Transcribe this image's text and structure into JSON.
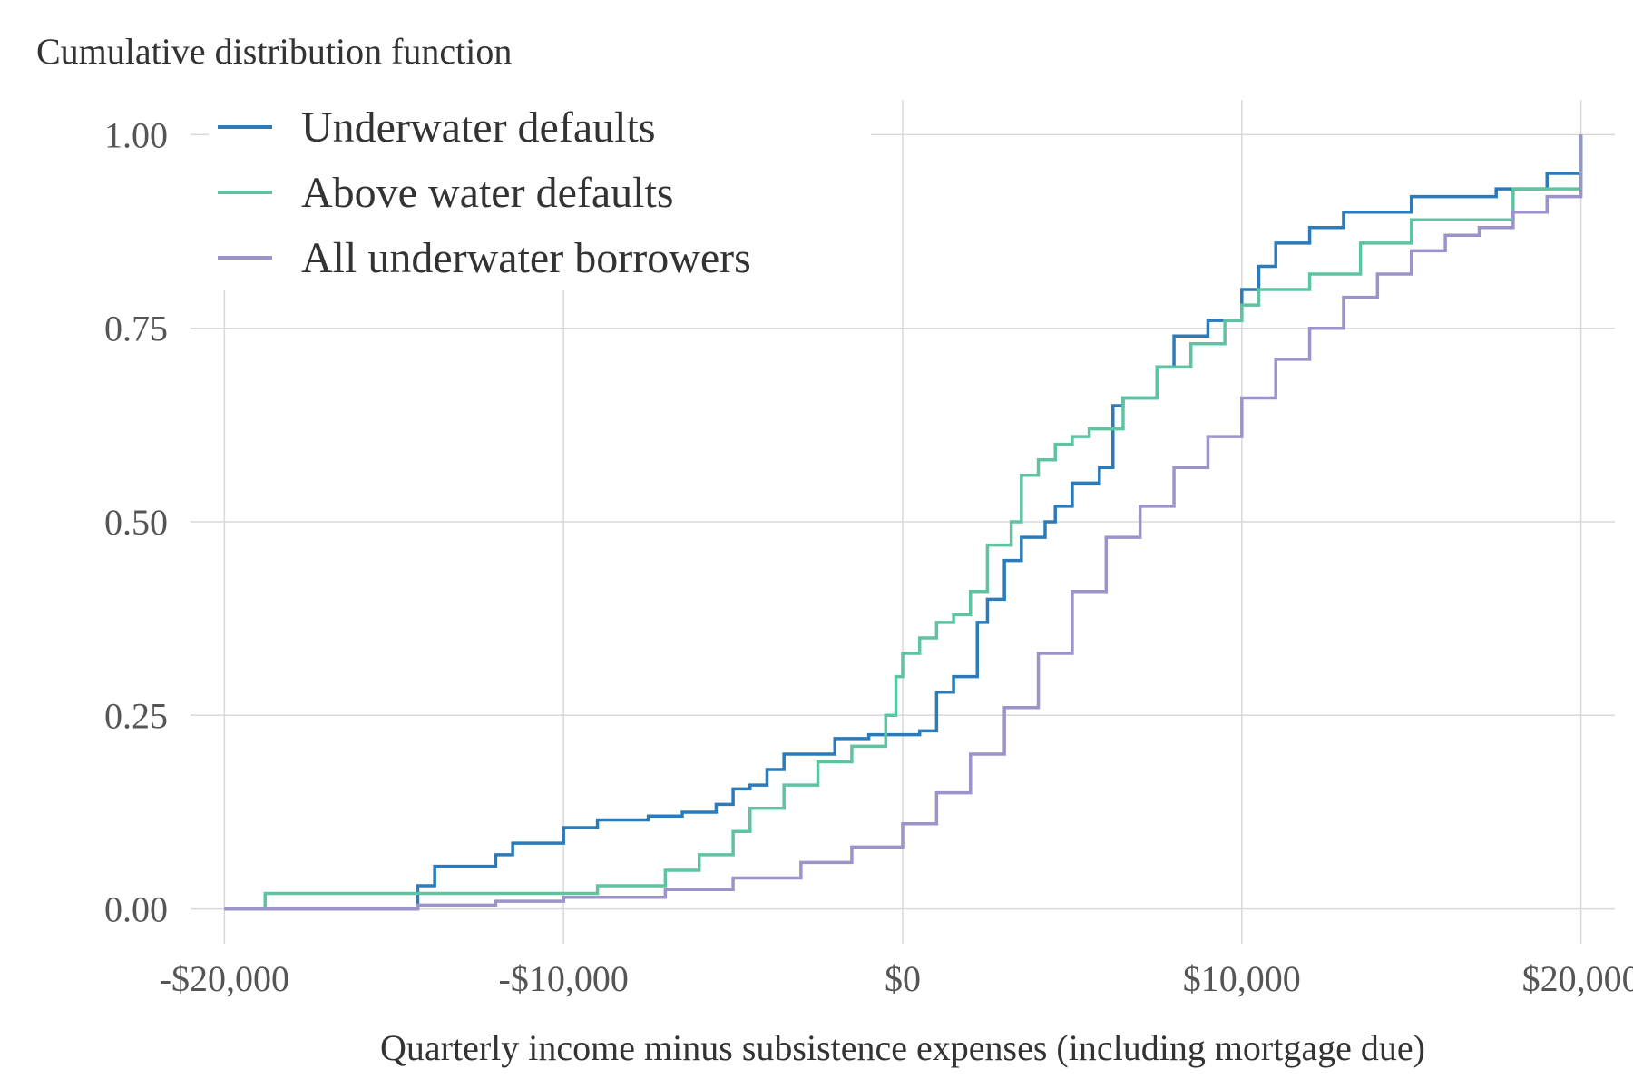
{
  "chart_data": {
    "type": "line",
    "title": "",
    "ylabel": "Cumulative distribution function",
    "xlabel": "Quarterly income minus subsistence expenses (including mortgage due)",
    "xlim": [
      -21000,
      21000
    ],
    "ylim": [
      -0.045,
      1.045
    ],
    "x_ticks": [
      -20000,
      -10000,
      0,
      10000,
      20000
    ],
    "x_tick_labels": [
      "-$20,000",
      "-$10,000",
      "$0",
      "$10,000",
      "$20,000"
    ],
    "y_ticks": [
      0,
      0.25,
      0.5,
      0.75,
      1.0
    ],
    "y_tick_labels": [
      "0.00",
      "0.25",
      "0.50",
      "0.75",
      "1.00"
    ],
    "grid": true,
    "legend_position": "top-left",
    "series": [
      {
        "name": "Underwater defaults",
        "color": "#2b7bba",
        "x": [
          -20000,
          -14300,
          -13800,
          -12000,
          -11500,
          -10000,
          -9000,
          -7500,
          -6500,
          -5500,
          -5000,
          -4500,
          -4000,
          -3500,
          -2000,
          -1000,
          500,
          1000,
          1500,
          2200,
          2500,
          3000,
          3500,
          4200,
          4500,
          5000,
          5800,
          6200,
          6500,
          7500,
          8000,
          9000,
          10000,
          10500,
          11000,
          12000,
          13000,
          15000,
          17500,
          19000,
          20000
        ],
        "values": [
          0,
          0.03,
          0.055,
          0.07,
          0.085,
          0.105,
          0.115,
          0.12,
          0.125,
          0.135,
          0.155,
          0.16,
          0.18,
          0.2,
          0.22,
          0.225,
          0.23,
          0.28,
          0.3,
          0.37,
          0.4,
          0.45,
          0.48,
          0.5,
          0.52,
          0.55,
          0.57,
          0.65,
          0.66,
          0.7,
          0.74,
          0.76,
          0.8,
          0.83,
          0.86,
          0.88,
          0.9,
          0.92,
          0.93,
          0.95,
          1.0
        ]
      },
      {
        "name": "Above water defaults",
        "color": "#5ec4a0",
        "x": [
          -20000,
          -18800,
          -9000,
          -7000,
          -6000,
          -5000,
          -4500,
          -3500,
          -2500,
          -1500,
          -500,
          -200,
          0,
          500,
          1000,
          1500,
          2000,
          2500,
          3200,
          3500,
          4000,
          4500,
          5000,
          5500,
          6500,
          7500,
          8500,
          9500,
          10000,
          10500,
          12000,
          13500,
          15000,
          18000,
          20000
        ],
        "values": [
          0,
          0.02,
          0.03,
          0.05,
          0.07,
          0.1,
          0.13,
          0.16,
          0.19,
          0.21,
          0.25,
          0.3,
          0.33,
          0.35,
          0.37,
          0.38,
          0.41,
          0.47,
          0.5,
          0.56,
          0.58,
          0.6,
          0.61,
          0.62,
          0.66,
          0.7,
          0.73,
          0.76,
          0.78,
          0.8,
          0.82,
          0.86,
          0.89,
          0.93,
          1.0
        ]
      },
      {
        "name": "All underwater borrowers",
        "color": "#9b93c9",
        "x": [
          -20000,
          -14300,
          -12000,
          -10000,
          -7000,
          -5000,
          -3000,
          -1500,
          0,
          1000,
          2000,
          3000,
          4000,
          5000,
          6000,
          7000,
          8000,
          9000,
          10000,
          11000,
          12000,
          13000,
          14000,
          15000,
          16000,
          17000,
          18000,
          19000,
          20000
        ],
        "values": [
          0,
          0.005,
          0.01,
          0.015,
          0.025,
          0.04,
          0.06,
          0.08,
          0.11,
          0.15,
          0.2,
          0.26,
          0.33,
          0.41,
          0.48,
          0.52,
          0.57,
          0.61,
          0.66,
          0.71,
          0.75,
          0.79,
          0.82,
          0.85,
          0.87,
          0.88,
          0.9,
          0.92,
          1.0
        ]
      }
    ]
  }
}
